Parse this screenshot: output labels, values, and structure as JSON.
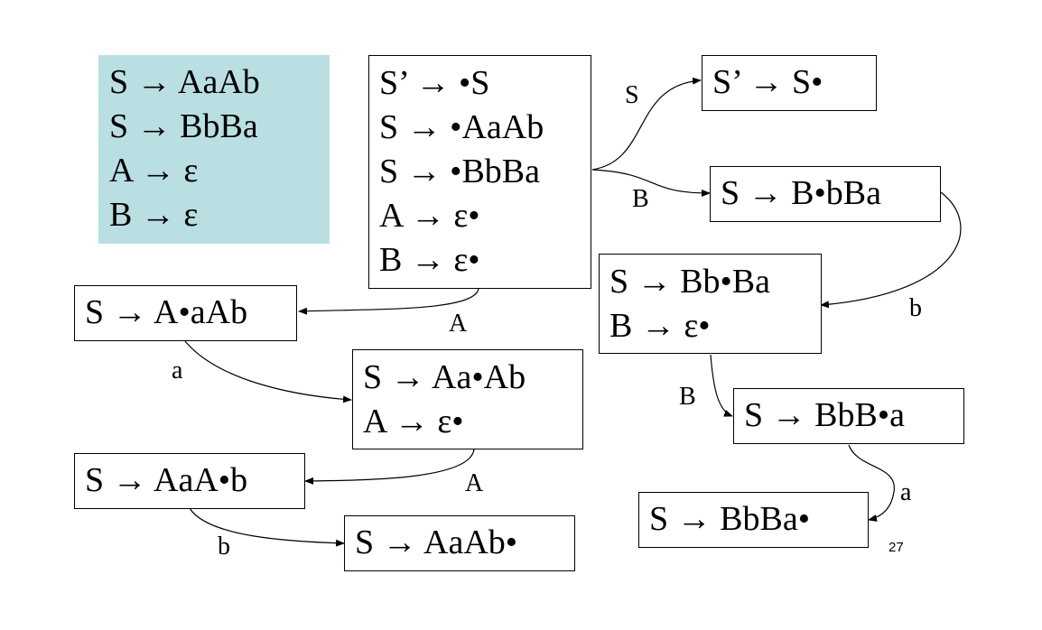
{
  "grammar": [
    "S → AaAb",
    "S → BbBa",
    "A → ε",
    "B → ε"
  ],
  "states": {
    "i0": [
      "S’ → •S",
      "S → •AaAb",
      "S → •BbBa",
      "A → ε•",
      "B → ε•"
    ],
    "s_accept": [
      "S’ → S•"
    ],
    "b1": [
      "S → B•bBa"
    ],
    "b2": [
      "S → Bb•Ba",
      "B → ε•"
    ],
    "b3": [
      "S → BbB•a"
    ],
    "b4": [
      "S → BbBa•"
    ],
    "a1": [
      "S → A•aAb"
    ],
    "a2": [
      "S → Aa•Ab",
      "A → ε•"
    ],
    "a3": [
      "S → AaA•b"
    ],
    "a4": [
      "S → AaAb•"
    ]
  },
  "transitions": [
    {
      "from": "i0",
      "to": "s_accept",
      "symbol": "S"
    },
    {
      "from": "i0",
      "to": "b1",
      "symbol": "B"
    },
    {
      "from": "b1",
      "to": "b2",
      "symbol": "b"
    },
    {
      "from": "b2",
      "to": "b3",
      "symbol": "B"
    },
    {
      "from": "b3",
      "to": "b4",
      "symbol": "a"
    },
    {
      "from": "i0",
      "to": "a1",
      "symbol": "A"
    },
    {
      "from": "a1",
      "to": "a2",
      "symbol": "a"
    },
    {
      "from": "a2",
      "to": "a3",
      "symbol": "A"
    },
    {
      "from": "a3",
      "to": "a4",
      "symbol": "b"
    }
  ],
  "page_number": "27"
}
